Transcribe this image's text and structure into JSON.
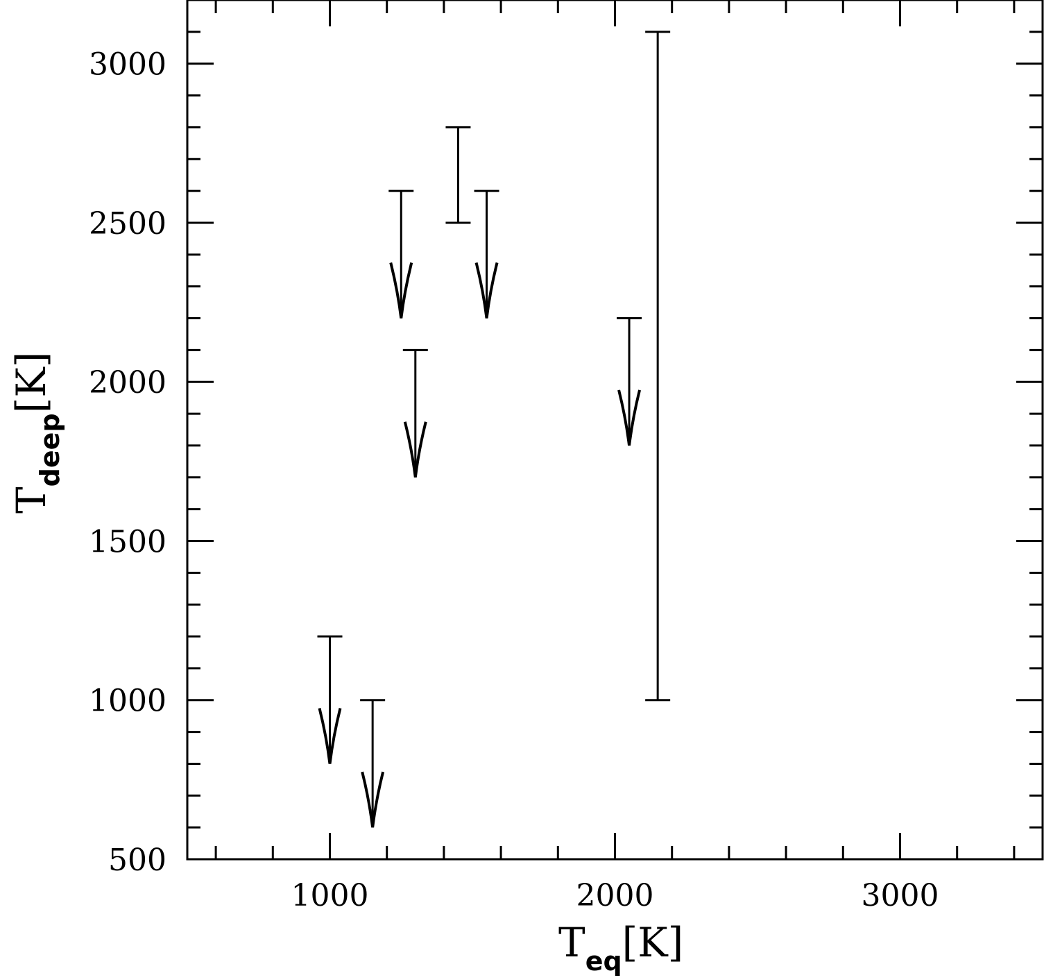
{
  "chart_data": {
    "type": "scatter",
    "xlabel": {
      "main": "T",
      "sub": "eq",
      "unit": "[K]"
    },
    "ylabel": {
      "main": "T",
      "sub": "deep",
      "unit": "[K]"
    },
    "xlim": [
      500,
      3500
    ],
    "ylim": [
      500,
      3200
    ],
    "xticks": [
      1000,
      2000,
      3000
    ],
    "yticks": [
      500,
      1000,
      1500,
      2000,
      2500,
      3000
    ],
    "x_minor_step": 100,
    "y_minor_step": 100,
    "grid": false,
    "color": "#000000",
    "upper_limits": [
      {
        "x": 1000,
        "y": 1200,
        "arrow_to": 800
      },
      {
        "x": 1150,
        "y": 1000,
        "arrow_to": 600
      },
      {
        "x": 1250,
        "y": 2600,
        "arrow_to": 2200
      },
      {
        "x": 1300,
        "y": 2100,
        "arrow_to": 1700
      },
      {
        "x": 1550,
        "y": 2600,
        "arrow_to": 2200
      },
      {
        "x": 2050,
        "y": 2200,
        "arrow_to": 1800
      }
    ],
    "ranges": [
      {
        "x": 1450,
        "low": 2500,
        "high": 2800
      },
      {
        "x": 2150,
        "low": 1000,
        "high": 3100
      }
    ]
  }
}
